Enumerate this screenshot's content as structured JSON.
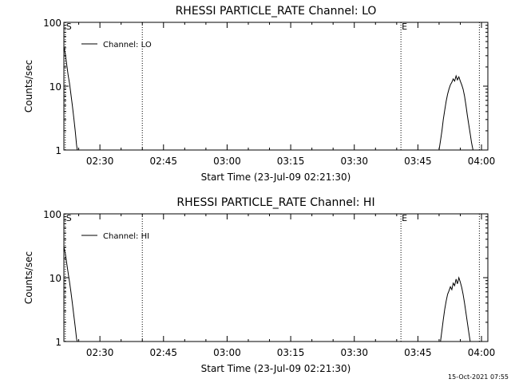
{
  "footer_timestamp": "15-Oct-2021 07:55",
  "chart_data": [
    {
      "type": "line",
      "title": "RHESSI PARTICLE_RATE Channel: LO",
      "xlabel": "Start Time (23-Jul-09 02:21:30)",
      "ylabel": "Counts/sec",
      "yscale": "log",
      "ylim": [
        1,
        100
      ],
      "xlim": [
        "02:21:30",
        "04:01:30"
      ],
      "y_tick_labels": [
        "1",
        "10",
        "100"
      ],
      "x_tick_labels": [
        "02:30",
        "02:45",
        "03:00",
        "03:15",
        "03:30",
        "03:45",
        "04:00"
      ],
      "marker_lines": [
        {
          "time": "02:21:50",
          "label": "S"
        },
        {
          "time": "02:40:00",
          "label": ""
        },
        {
          "time": "03:41:00",
          "label": "E"
        },
        {
          "time": "03:59:30",
          "label": ""
        }
      ],
      "legend": {
        "position": "top-left",
        "entries": [
          "Channel: LO"
        ]
      },
      "series": [
        {
          "name": "Channel: LO",
          "segments": [
            [
              [
                "02:21:30",
                42
              ],
              [
                "02:21:50",
                32
              ],
              [
                "02:22:10",
                22
              ],
              [
                "02:22:30",
                15
              ],
              [
                "02:22:50",
                11
              ],
              [
                "02:23:10",
                7.5
              ],
              [
                "02:23:30",
                5
              ],
              [
                "02:23:50",
                3.2
              ],
              [
                "02:24:10",
                2
              ],
              [
                "02:24:30",
                1.2
              ],
              [
                "02:24:40",
                1
              ]
            ],
            [
              [
                "03:50:00",
                1
              ],
              [
                "03:50:20",
                1.4
              ],
              [
                "03:50:40",
                2
              ],
              [
                "03:51:00",
                3
              ],
              [
                "03:51:20",
                4.2
              ],
              [
                "03:51:40",
                5.8
              ],
              [
                "03:52:00",
                7.5
              ],
              [
                "03:52:20",
                9
              ],
              [
                "03:52:40",
                10.5
              ],
              [
                "03:53:00",
                11.5
              ],
              [
                "03:53:20",
                13
              ],
              [
                "03:53:40",
                12
              ],
              [
                "03:54:00",
                14.5
              ],
              [
                "03:54:20",
                12.5
              ],
              [
                "03:54:40",
                14
              ],
              [
                "03:55:00",
                12
              ],
              [
                "03:55:20",
                10.5
              ],
              [
                "03:55:40",
                9
              ],
              [
                "03:56:00",
                7
              ],
              [
                "03:56:20",
                5
              ],
              [
                "03:56:40",
                3.5
              ],
              [
                "03:57:00",
                2.5
              ],
              [
                "03:57:20",
                1.8
              ],
              [
                "03:57:40",
                1.3
              ],
              [
                "03:58:00",
                1
              ]
            ]
          ]
        }
      ]
    },
    {
      "type": "line",
      "title": "RHESSI PARTICLE_RATE Channel: HI",
      "xlabel": "Start Time (23-Jul-09 02:21:30)",
      "ylabel": "Counts/sec",
      "yscale": "log",
      "ylim": [
        1,
        100
      ],
      "xlim": [
        "02:21:30",
        "04:01:30"
      ],
      "y_tick_labels": [
        "1",
        "10",
        "100"
      ],
      "x_tick_labels": [
        "02:30",
        "02:45",
        "03:00",
        "03:15",
        "03:30",
        "03:45",
        "04:00"
      ],
      "marker_lines": [
        {
          "time": "02:21:50",
          "label": "S"
        },
        {
          "time": "02:40:00",
          "label": ""
        },
        {
          "time": "03:41:00",
          "label": "E"
        },
        {
          "time": "03:59:30",
          "label": ""
        }
      ],
      "legend": {
        "position": "top-left",
        "entries": [
          "Channel: HI"
        ]
      },
      "series": [
        {
          "name": "Channel: HI",
          "segments": [
            [
              [
                "02:21:30",
                30
              ],
              [
                "02:21:50",
                24
              ],
              [
                "02:22:10",
                17
              ],
              [
                "02:22:30",
                12
              ],
              [
                "02:22:50",
                8.5
              ],
              [
                "02:23:10",
                6
              ],
              [
                "02:23:30",
                4
              ],
              [
                "02:23:50",
                2.6
              ],
              [
                "02:24:10",
                1.7
              ],
              [
                "02:24:30",
                1.1
              ],
              [
                "02:24:40",
                1
              ]
            ],
            [
              [
                "03:50:20",
                1
              ],
              [
                "03:50:40",
                1.5
              ],
              [
                "03:51:00",
                2.2
              ],
              [
                "03:51:20",
                3.2
              ],
              [
                "03:51:40",
                4.3
              ],
              [
                "03:52:00",
                5.5
              ],
              [
                "03:52:20",
                6.2
              ],
              [
                "03:52:40",
                7.2
              ],
              [
                "03:53:00",
                6.5
              ],
              [
                "03:53:20",
                8.2
              ],
              [
                "03:53:40",
                7.5
              ],
              [
                "03:54:00",
                9.5
              ],
              [
                "03:54:20",
                8
              ],
              [
                "03:54:40",
                10
              ],
              [
                "03:55:00",
                8.5
              ],
              [
                "03:55:20",
                7
              ],
              [
                "03:55:40",
                5.5
              ],
              [
                "03:56:00",
                4
              ],
              [
                "03:56:20",
                2.8
              ],
              [
                "03:56:40",
                2
              ],
              [
                "03:57:00",
                1.4
              ],
              [
                "03:57:20",
                1
              ]
            ]
          ]
        }
      ]
    }
  ]
}
